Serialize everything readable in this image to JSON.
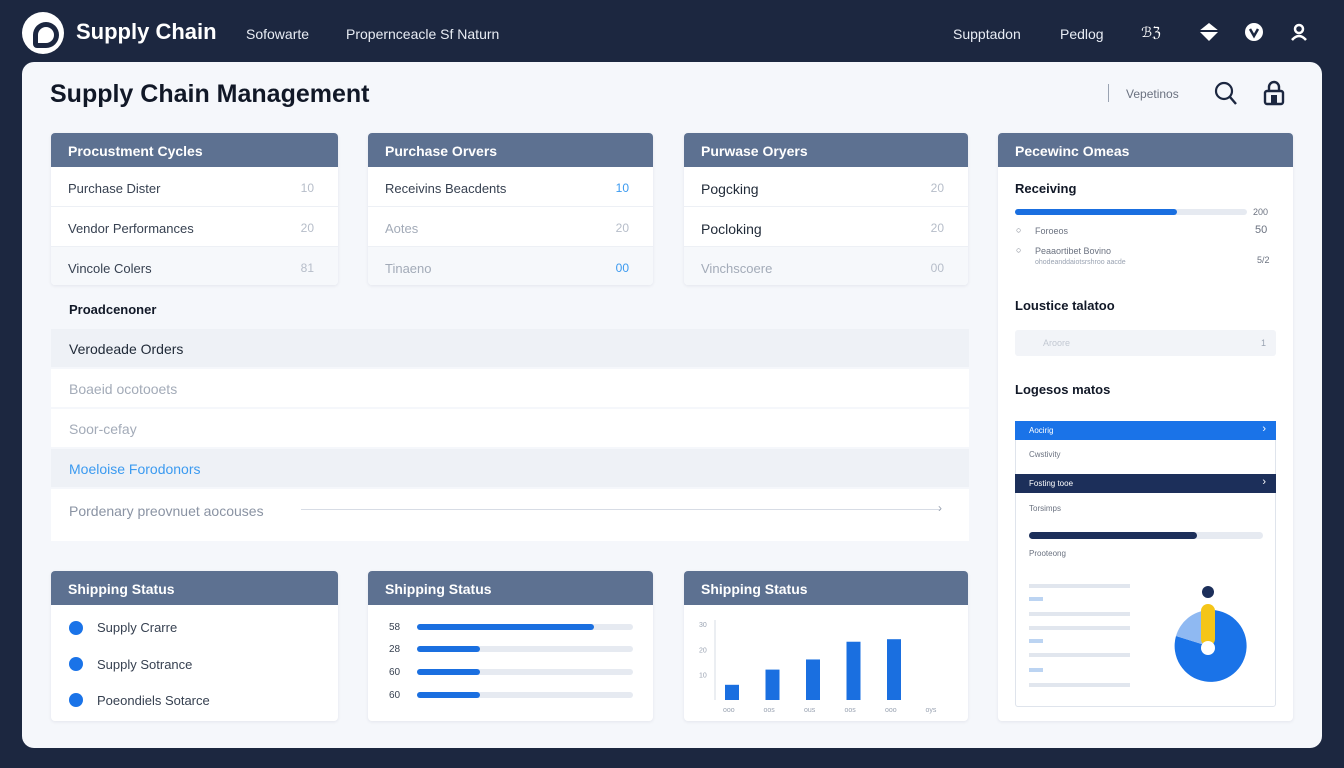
{
  "nav": {
    "brand": "Supply Chain",
    "links": [
      "Sofowarte",
      "Propernceacle Sf Naturn"
    ],
    "right_links": [
      "Supptadon",
      "Pedlog"
    ],
    "right_icons": [
      "glyph-icon",
      "diamond-icon",
      "shield-icon",
      "user-icon"
    ],
    "glyph_text": "ℬℨ"
  },
  "page": {
    "title": "Supply Chain Management",
    "search_text": "Vepetinos"
  },
  "cards": [
    {
      "title": "Procustment Cycles",
      "rows": [
        {
          "label": "Purchase Dister",
          "value": "10"
        },
        {
          "label": "Vendor Performances",
          "value": "20"
        },
        {
          "label": "Vincole Colers",
          "value": "81"
        }
      ]
    },
    {
      "title": "Purchase Orvers",
      "rows": [
        {
          "label": "Receivins Beacdents",
          "value": "10"
        },
        {
          "label": "Aotes",
          "value": "20"
        },
        {
          "label": "Tinaeno",
          "value": "00"
        }
      ]
    },
    {
      "title": "Purwase Oryers",
      "rows": [
        {
          "label": "Pogcking",
          "value": "20"
        },
        {
          "label": "Pocloking",
          "value": "20"
        },
        {
          "label": "Vinchscoere",
          "value": "00"
        }
      ]
    }
  ],
  "list": {
    "title": "Proadcenoner",
    "rows": [
      "Verodeade Orders",
      "Boaeid ocotooets",
      "Soor-cefay",
      "Moeloise Forodonors",
      "Pordenary preovnuet aocouses"
    ]
  },
  "right": {
    "title": "Pecewinc Omeas",
    "receiving": "Receiving",
    "receiving_value": "200",
    "progress": 0.7,
    "sub_items": [
      {
        "label": "Foroeos",
        "value": "50"
      },
      {
        "label": "Peaaortibet Bovino",
        "value": "5/2"
      }
    ],
    "sub_note": "ohodeanddaiotsrshroo aacde",
    "logistics_title": "Loustice talatoo",
    "logistics_input": "Aroore",
    "logistics_count": "1",
    "logs_title": "Logesos matos",
    "widget": {
      "row1": "Aocirig",
      "item1": "Cwstivity",
      "row2": "Fosting tooe",
      "item2": "Torsimps",
      "item2_progress": 0.72,
      "item3": "Prooteong"
    }
  },
  "shipping": [
    {
      "title": "Shipping Status",
      "items": [
        "Supply Crarre",
        "Supply Sotrance",
        "Poeondiels Sotarce"
      ]
    },
    {
      "title": "Shipping Status",
      "bars": [
        {
          "label": "58",
          "value": 0.82
        },
        {
          "label": "28",
          "value": 0.29
        },
        {
          "label": "60",
          "value": 0.29
        },
        {
          "label": "60",
          "value": 0.29
        }
      ]
    },
    {
      "title": "Shipping Status",
      "chart_data": {
        "type": "bar",
        "y_ticks": [
          "30",
          "20",
          "10"
        ],
        "categories": [
          "ooo",
          "oos",
          "ous",
          "oos",
          "ooo",
          "oys"
        ],
        "values": [
          6,
          12,
          16,
          23,
          24,
          0
        ],
        "ylim": [
          0,
          30
        ]
      }
    }
  ],
  "colors": {
    "accent": "#1a6fe0",
    "header": "#5d7191",
    "navy": "#1c2740"
  }
}
